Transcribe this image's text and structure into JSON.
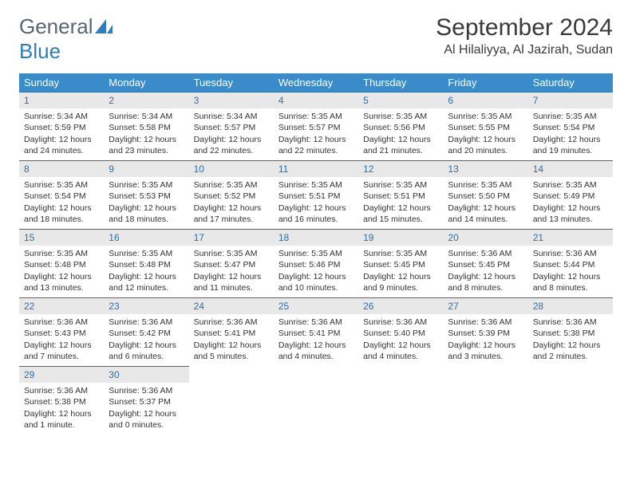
{
  "logo": {
    "general": "General",
    "blue": "Blue"
  },
  "title": "September 2024",
  "location": "Al Hilaliyya, Al Jazirah, Sudan",
  "colors": {
    "header_bg": "#3a8bc9",
    "header_text": "#ffffff",
    "daynum_bg": "#e8e8e8",
    "daynum_text": "#2e6fa8",
    "divider": "#2e6fa8",
    "body_text": "#333333",
    "logo_gray": "#5a6570",
    "logo_blue": "#2f7dbf"
  },
  "weekdays": [
    "Sunday",
    "Monday",
    "Tuesday",
    "Wednesday",
    "Thursday",
    "Friday",
    "Saturday"
  ],
  "days": [
    {
      "n": "1",
      "sunrise": "Sunrise: 5:34 AM",
      "sunset": "Sunset: 5:59 PM",
      "d1": "Daylight: 12 hours",
      "d2": "and 24 minutes."
    },
    {
      "n": "2",
      "sunrise": "Sunrise: 5:34 AM",
      "sunset": "Sunset: 5:58 PM",
      "d1": "Daylight: 12 hours",
      "d2": "and 23 minutes."
    },
    {
      "n": "3",
      "sunrise": "Sunrise: 5:34 AM",
      "sunset": "Sunset: 5:57 PM",
      "d1": "Daylight: 12 hours",
      "d2": "and 22 minutes."
    },
    {
      "n": "4",
      "sunrise": "Sunrise: 5:35 AM",
      "sunset": "Sunset: 5:57 PM",
      "d1": "Daylight: 12 hours",
      "d2": "and 22 minutes."
    },
    {
      "n": "5",
      "sunrise": "Sunrise: 5:35 AM",
      "sunset": "Sunset: 5:56 PM",
      "d1": "Daylight: 12 hours",
      "d2": "and 21 minutes."
    },
    {
      "n": "6",
      "sunrise": "Sunrise: 5:35 AM",
      "sunset": "Sunset: 5:55 PM",
      "d1": "Daylight: 12 hours",
      "d2": "and 20 minutes."
    },
    {
      "n": "7",
      "sunrise": "Sunrise: 5:35 AM",
      "sunset": "Sunset: 5:54 PM",
      "d1": "Daylight: 12 hours",
      "d2": "and 19 minutes."
    },
    {
      "n": "8",
      "sunrise": "Sunrise: 5:35 AM",
      "sunset": "Sunset: 5:54 PM",
      "d1": "Daylight: 12 hours",
      "d2": "and 18 minutes."
    },
    {
      "n": "9",
      "sunrise": "Sunrise: 5:35 AM",
      "sunset": "Sunset: 5:53 PM",
      "d1": "Daylight: 12 hours",
      "d2": "and 18 minutes."
    },
    {
      "n": "10",
      "sunrise": "Sunrise: 5:35 AM",
      "sunset": "Sunset: 5:52 PM",
      "d1": "Daylight: 12 hours",
      "d2": "and 17 minutes."
    },
    {
      "n": "11",
      "sunrise": "Sunrise: 5:35 AM",
      "sunset": "Sunset: 5:51 PM",
      "d1": "Daylight: 12 hours",
      "d2": "and 16 minutes."
    },
    {
      "n": "12",
      "sunrise": "Sunrise: 5:35 AM",
      "sunset": "Sunset: 5:51 PM",
      "d1": "Daylight: 12 hours",
      "d2": "and 15 minutes."
    },
    {
      "n": "13",
      "sunrise": "Sunrise: 5:35 AM",
      "sunset": "Sunset: 5:50 PM",
      "d1": "Daylight: 12 hours",
      "d2": "and 14 minutes."
    },
    {
      "n": "14",
      "sunrise": "Sunrise: 5:35 AM",
      "sunset": "Sunset: 5:49 PM",
      "d1": "Daylight: 12 hours",
      "d2": "and 13 minutes."
    },
    {
      "n": "15",
      "sunrise": "Sunrise: 5:35 AM",
      "sunset": "Sunset: 5:48 PM",
      "d1": "Daylight: 12 hours",
      "d2": "and 13 minutes."
    },
    {
      "n": "16",
      "sunrise": "Sunrise: 5:35 AM",
      "sunset": "Sunset: 5:48 PM",
      "d1": "Daylight: 12 hours",
      "d2": "and 12 minutes."
    },
    {
      "n": "17",
      "sunrise": "Sunrise: 5:35 AM",
      "sunset": "Sunset: 5:47 PM",
      "d1": "Daylight: 12 hours",
      "d2": "and 11 minutes."
    },
    {
      "n": "18",
      "sunrise": "Sunrise: 5:35 AM",
      "sunset": "Sunset: 5:46 PM",
      "d1": "Daylight: 12 hours",
      "d2": "and 10 minutes."
    },
    {
      "n": "19",
      "sunrise": "Sunrise: 5:35 AM",
      "sunset": "Sunset: 5:45 PM",
      "d1": "Daylight: 12 hours",
      "d2": "and 9 minutes."
    },
    {
      "n": "20",
      "sunrise": "Sunrise: 5:36 AM",
      "sunset": "Sunset: 5:45 PM",
      "d1": "Daylight: 12 hours",
      "d2": "and 8 minutes."
    },
    {
      "n": "21",
      "sunrise": "Sunrise: 5:36 AM",
      "sunset": "Sunset: 5:44 PM",
      "d1": "Daylight: 12 hours",
      "d2": "and 8 minutes."
    },
    {
      "n": "22",
      "sunrise": "Sunrise: 5:36 AM",
      "sunset": "Sunset: 5:43 PM",
      "d1": "Daylight: 12 hours",
      "d2": "and 7 minutes."
    },
    {
      "n": "23",
      "sunrise": "Sunrise: 5:36 AM",
      "sunset": "Sunset: 5:42 PM",
      "d1": "Daylight: 12 hours",
      "d2": "and 6 minutes."
    },
    {
      "n": "24",
      "sunrise": "Sunrise: 5:36 AM",
      "sunset": "Sunset: 5:41 PM",
      "d1": "Daylight: 12 hours",
      "d2": "and 5 minutes."
    },
    {
      "n": "25",
      "sunrise": "Sunrise: 5:36 AM",
      "sunset": "Sunset: 5:41 PM",
      "d1": "Daylight: 12 hours",
      "d2": "and 4 minutes."
    },
    {
      "n": "26",
      "sunrise": "Sunrise: 5:36 AM",
      "sunset": "Sunset: 5:40 PM",
      "d1": "Daylight: 12 hours",
      "d2": "and 4 minutes."
    },
    {
      "n": "27",
      "sunrise": "Sunrise: 5:36 AM",
      "sunset": "Sunset: 5:39 PM",
      "d1": "Daylight: 12 hours",
      "d2": "and 3 minutes."
    },
    {
      "n": "28",
      "sunrise": "Sunrise: 5:36 AM",
      "sunset": "Sunset: 5:38 PM",
      "d1": "Daylight: 12 hours",
      "d2": "and 2 minutes."
    },
    {
      "n": "29",
      "sunrise": "Sunrise: 5:36 AM",
      "sunset": "Sunset: 5:38 PM",
      "d1": "Daylight: 12 hours",
      "d2": "and 1 minute."
    },
    {
      "n": "30",
      "sunrise": "Sunrise: 5:36 AM",
      "sunset": "Sunset: 5:37 PM",
      "d1": "Daylight: 12 hours",
      "d2": "and 0 minutes."
    }
  ]
}
